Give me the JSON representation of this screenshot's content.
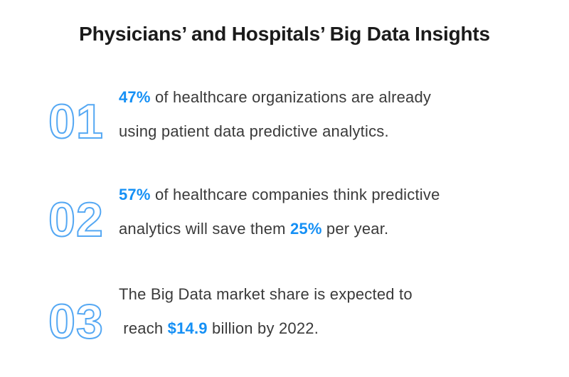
{
  "title": "Physicians’ and Hospitals’ Big Data Insights",
  "colors": {
    "background": "#ffffff",
    "title": "#1b1b1b",
    "body": "#3a3a3a",
    "accent": "#1590f5",
    "number_outline": "#55a8f3"
  },
  "items": [
    {
      "number": "01",
      "line1": [
        {
          "text": "47%",
          "emphasis": true
        },
        {
          "text": " of healthcare organizations are already",
          "emphasis": false
        }
      ],
      "line2": [
        {
          "text": "using patient data predictive analytics.",
          "emphasis": false
        }
      ]
    },
    {
      "number": "02",
      "line1": [
        {
          "text": "57%",
          "emphasis": true
        },
        {
          "text": " of healthcare companies think predictive",
          "emphasis": false
        }
      ],
      "line2": [
        {
          "text": "analytics will save them ",
          "emphasis": false
        },
        {
          "text": "25%",
          "emphasis": true
        },
        {
          "text": " per year.",
          "emphasis": false
        }
      ]
    },
    {
      "number": "03",
      "line1": [
        {
          "text": "The Big Data market share is expected to",
          "emphasis": false
        }
      ],
      "line2": [
        {
          "text": " reach ",
          "emphasis": false
        },
        {
          "text": "$14.9",
          "emphasis": true
        },
        {
          "text": " billion by 2022.",
          "emphasis": false
        }
      ]
    }
  ]
}
